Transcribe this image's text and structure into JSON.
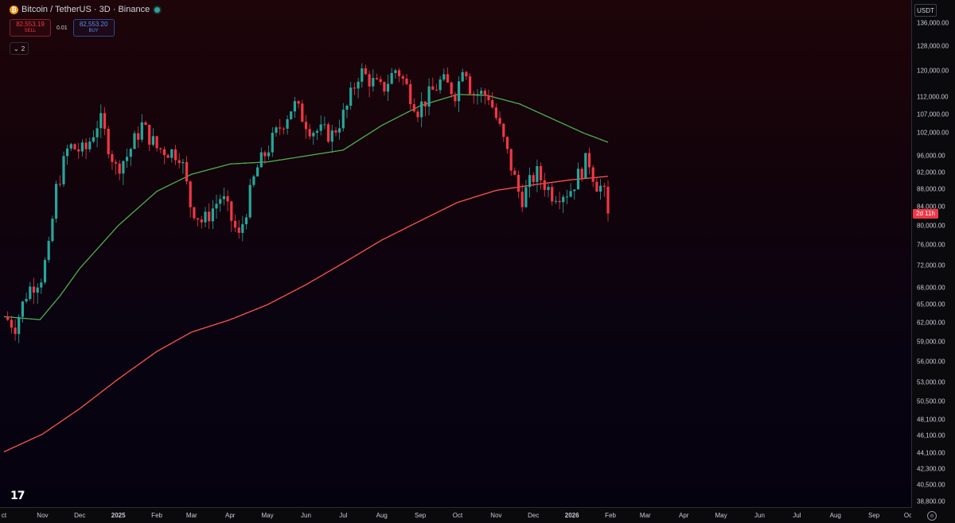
{
  "header": {
    "symbol_title": "Bitcoin / TetherUS · 3D · Binance",
    "sell_price": "82,553.19",
    "sell_label": "SELL",
    "spread": "0.01",
    "buy_price": "82,553.20",
    "buy_label": "BUY",
    "indicators_count": "2"
  },
  "price_axis": {
    "unit": "USDT",
    "current_price_countdown": "2d 11h"
  },
  "colors": {
    "up": "#26a69a",
    "down": "#f23645",
    "ma_short": "#4caf50",
    "ma_long": "#ff5252",
    "background_top": "#1e0509",
    "background_bottom": "#05020f"
  },
  "chart_data": {
    "type": "candlestick",
    "scale": "log",
    "ylim": [
      38000,
      138000
    ],
    "y_ticks": [
      "136,000.00",
      "128,000.00",
      "120,000.00",
      "112,000.00",
      "107,000.00",
      "102,000.00",
      "96,000.00",
      "92,000.00",
      "88,000.00",
      "84,000.00",
      "80,000.00",
      "76,000.00",
      "72,000.00",
      "68,000.00",
      "65,000.00",
      "62,000.00",
      "59,000.00",
      "56,000.00",
      "53,000.00",
      "50,500.00",
      "48,100.00",
      "46,100.00",
      "44,100.00",
      "42,300.00",
      "40,500.00",
      "38,800.00"
    ],
    "y_tick_values": [
      136000,
      128000,
      120000,
      112000,
      107000,
      102000,
      96000,
      92000,
      88000,
      84000,
      80000,
      76000,
      72000,
      68000,
      65000,
      62000,
      59000,
      56000,
      53000,
      50500,
      48100,
      46100,
      44100,
      42300,
      40500,
      38800
    ],
    "x_ticks": [
      {
        "label": "ct",
        "date": "2024-10-01"
      },
      {
        "label": "Nov",
        "date": "2024-11-01"
      },
      {
        "label": "Dec",
        "date": "2024-12-01"
      },
      {
        "label": "2025",
        "date": "2025-01-01"
      },
      {
        "label": "Feb",
        "date": "2025-02-01"
      },
      {
        "label": "Mar",
        "date": "2025-03-01"
      },
      {
        "label": "Apr",
        "date": "2025-04-01"
      },
      {
        "label": "May",
        "date": "2025-05-01"
      },
      {
        "label": "Jun",
        "date": "2025-06-01"
      },
      {
        "label": "Jul",
        "date": "2025-07-01"
      },
      {
        "label": "Aug",
        "date": "2025-08-01"
      },
      {
        "label": "Sep",
        "date": "2025-09-01"
      },
      {
        "label": "Oct",
        "date": "2025-10-01"
      },
      {
        "label": "Nov",
        "date": "2025-11-01"
      },
      {
        "label": "Dec",
        "date": "2025-12-01"
      },
      {
        "label": "2026",
        "date": "2026-01-01"
      },
      {
        "label": "Feb",
        "date": "2026-02-01"
      },
      {
        "label": "Mar",
        "date": "2026-03-01"
      },
      {
        "label": "Apr",
        "date": "2026-04-01"
      },
      {
        "label": "May",
        "date": "2026-05-01"
      },
      {
        "label": "Jun",
        "date": "2026-06-01"
      },
      {
        "label": "Jul",
        "date": "2026-07-01"
      },
      {
        "label": "Aug",
        "date": "2026-08-01"
      },
      {
        "label": "Sep",
        "date": "2026-09-01"
      },
      {
        "label": "Oc",
        "date": "2026-10-01"
      }
    ],
    "price_anchors": [
      {
        "date": "2024-10-01",
        "price": 63000
      },
      {
        "date": "2024-10-10",
        "price": 61500
      },
      {
        "date": "2024-10-20",
        "price": 67500
      },
      {
        "date": "2024-10-31",
        "price": 70000
      },
      {
        "date": "2024-11-06",
        "price": 75000
      },
      {
        "date": "2024-11-12",
        "price": 88000
      },
      {
        "date": "2024-11-22",
        "price": 98500
      },
      {
        "date": "2024-12-05",
        "price": 97000
      },
      {
        "date": "2024-12-17",
        "price": 106000
      },
      {
        "date": "2024-12-30",
        "price": 93000
      },
      {
        "date": "2025-01-08",
        "price": 96000
      },
      {
        "date": "2025-01-20",
        "price": 104000
      },
      {
        "date": "2025-02-01",
        "price": 98000
      },
      {
        "date": "2025-02-20",
        "price": 96500
      },
      {
        "date": "2025-02-28",
        "price": 84500
      },
      {
        "date": "2025-03-10",
        "price": 80500
      },
      {
        "date": "2025-03-25",
        "price": 86500
      },
      {
        "date": "2025-04-08",
        "price": 77500
      },
      {
        "date": "2025-04-22",
        "price": 92500
      },
      {
        "date": "2025-05-10",
        "price": 103000
      },
      {
        "date": "2025-05-22",
        "price": 110000
      },
      {
        "date": "2025-06-05",
        "price": 103000
      },
      {
        "date": "2025-06-22",
        "price": 101500
      },
      {
        "date": "2025-07-03",
        "price": 108000
      },
      {
        "date": "2025-07-14",
        "price": 120000
      },
      {
        "date": "2025-08-01",
        "price": 114000
      },
      {
        "date": "2025-08-13",
        "price": 121000
      },
      {
        "date": "2025-08-30",
        "price": 108500
      },
      {
        "date": "2025-09-18",
        "price": 117000
      },
      {
        "date": "2025-09-30",
        "price": 113000
      },
      {
        "date": "2025-10-06",
        "price": 124000
      },
      {
        "date": "2025-10-12",
        "price": 113500
      },
      {
        "date": "2025-10-26",
        "price": 112500
      },
      {
        "date": "2025-11-05",
        "price": 102000
      },
      {
        "date": "2025-11-21",
        "price": 85500
      },
      {
        "date": "2025-12-03",
        "price": 92000
      },
      {
        "date": "2025-12-16",
        "price": 87000
      },
      {
        "date": "2025-12-30",
        "price": 87500
      },
      {
        "date": "2026-01-14",
        "price": 95500
      },
      {
        "date": "2026-01-20",
        "price": 89500
      },
      {
        "date": "2026-01-26",
        "price": 88000
      },
      {
        "date": "2026-01-30",
        "price": 82553
      }
    ],
    "series": [
      {
        "kind": "moving_average",
        "color": "#4caf50",
        "points": [
          {
            "date": "2024-10-01",
            "value": 63000
          },
          {
            "date": "2024-10-30",
            "value": 62500
          },
          {
            "date": "2024-11-15",
            "value": 66500
          },
          {
            "date": "2024-12-01",
            "value": 71500
          },
          {
            "date": "2025-01-01",
            "value": 80000
          },
          {
            "date": "2025-02-01",
            "value": 87500
          },
          {
            "date": "2025-03-01",
            "value": 91500
          },
          {
            "date": "2025-04-01",
            "value": 94000
          },
          {
            "date": "2025-05-01",
            "value": 94500
          },
          {
            "date": "2025-06-01",
            "value": 96000
          },
          {
            "date": "2025-07-01",
            "value": 97500
          },
          {
            "date": "2025-08-01",
            "value": 104000
          },
          {
            "date": "2025-09-01",
            "value": 109500
          },
          {
            "date": "2025-10-01",
            "value": 112800
          },
          {
            "date": "2025-10-25",
            "value": 112500
          },
          {
            "date": "2025-11-20",
            "value": 110000
          },
          {
            "date": "2025-12-15",
            "value": 106000
          },
          {
            "date": "2026-01-10",
            "value": 102000
          },
          {
            "date": "2026-01-30",
            "value": 99500
          }
        ]
      },
      {
        "kind": "moving_average",
        "color": "#ff5252",
        "points": [
          {
            "date": "2024-10-01",
            "value": 44200
          },
          {
            "date": "2024-11-01",
            "value": 46300
          },
          {
            "date": "2024-12-01",
            "value": 49500
          },
          {
            "date": "2025-01-01",
            "value": 53500
          },
          {
            "date": "2025-02-01",
            "value": 57500
          },
          {
            "date": "2025-03-01",
            "value": 60500
          },
          {
            "date": "2025-04-01",
            "value": 62500
          },
          {
            "date": "2025-05-01",
            "value": 65000
          },
          {
            "date": "2025-06-01",
            "value": 68500
          },
          {
            "date": "2025-07-01",
            "value": 72500
          },
          {
            "date": "2025-08-01",
            "value": 77000
          },
          {
            "date": "2025-09-01",
            "value": 81000
          },
          {
            "date": "2025-10-01",
            "value": 85000
          },
          {
            "date": "2025-11-01",
            "value": 87700
          },
          {
            "date": "2025-12-01",
            "value": 89000
          },
          {
            "date": "2026-01-01",
            "value": 90200
          },
          {
            "date": "2026-01-30",
            "value": 91000
          }
        ]
      }
    ],
    "last_price": 82553,
    "grid": false
  }
}
